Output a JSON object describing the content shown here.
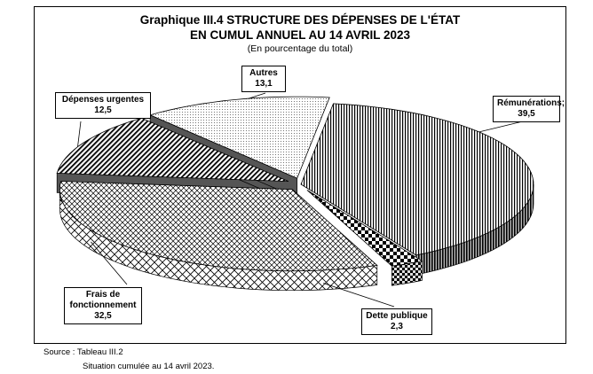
{
  "chart_data": {
    "type": "pie",
    "title_line1": "Graphique III.4  STRUCTURE  DES DÉPENSES DE L'ÉTAT",
    "title_line2": "EN CUMUL ANNUEL AU 14 AVRIL 2023",
    "subtitle": "(En pourcentage du total)",
    "slices": [
      {
        "label": "Rémunérations;",
        "value_text": "39,5",
        "value": 39.5,
        "pattern": "vertical-lines",
        "exploded": false
      },
      {
        "label": "Dette publique",
        "value_text": "2,3",
        "value": 2.3,
        "pattern": "checker",
        "exploded": true
      },
      {
        "label": "Frais de fonctionnement",
        "label_line1": "Frais de",
        "label_line2": "fonctionnement",
        "value_text": "32,5",
        "value": 32.5,
        "pattern": "crosshatch",
        "exploded": true
      },
      {
        "label": "Dépenses urgentes",
        "value_text": "12,5",
        "value": 12.5,
        "pattern": "diagonal-dark",
        "exploded": true
      },
      {
        "label": "Autres",
        "value_text": "13,1",
        "value": 13.1,
        "pattern": "dots",
        "exploded": true
      }
    ]
  },
  "footer": {
    "source": "Source : Tableau III.2",
    "situation": "Situation cumulée au 14 avril 2023."
  }
}
